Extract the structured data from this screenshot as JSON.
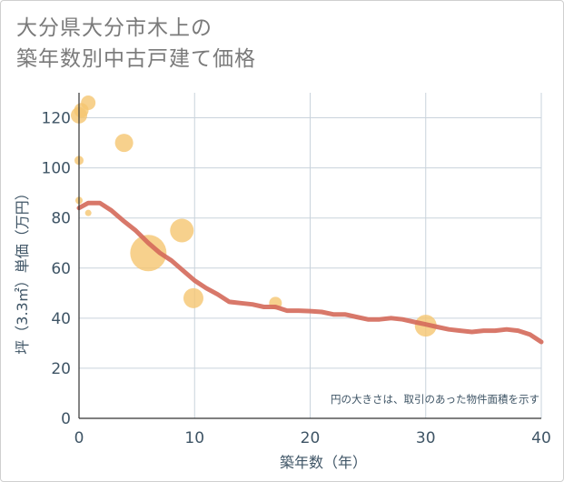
{
  "title": {
    "line1": "大分県大分市木上の",
    "line2": "築年数別中古戸建て価格"
  },
  "chart_data": {
    "type": "scatter+line",
    "xlabel": "築年数（年）",
    "ylabel": "坪（3.3㎡）単価（万円）",
    "xlim": [
      0,
      40
    ],
    "ylim": [
      0,
      130
    ],
    "xticks": [
      0,
      10,
      20,
      30,
      40
    ],
    "yticks": [
      0,
      20,
      40,
      60,
      80,
      100,
      120
    ],
    "note": "円の大きさは、取引のあった物件面積を示す",
    "colors": {
      "bubble": "#f5c571",
      "line": "#d4695a",
      "grid": "#c9d3dc",
      "text": "#3f5566"
    },
    "bubbles": [
      {
        "x": 0,
        "y": 121,
        "size": 9
      },
      {
        "x": 0.2,
        "y": 123,
        "size": 8
      },
      {
        "x": 0.8,
        "y": 126,
        "size": 8
      },
      {
        "x": 0,
        "y": 103,
        "size": 5
      },
      {
        "x": 0,
        "y": 87,
        "size": 4
      },
      {
        "x": 0.8,
        "y": 82,
        "size": 3.5
      },
      {
        "x": 3.9,
        "y": 110,
        "size": 10
      },
      {
        "x": 6,
        "y": 66,
        "size": 20
      },
      {
        "x": 8.9,
        "y": 75,
        "size": 13
      },
      {
        "x": 9.9,
        "y": 48,
        "size": 11
      },
      {
        "x": 17,
        "y": 46,
        "size": 7
      },
      {
        "x": 30,
        "y": 37,
        "size": 12
      }
    ],
    "trend": {
      "x": [
        0,
        0.8,
        1.8,
        2.8,
        3.8,
        4.9,
        6,
        7,
        8,
        9,
        10,
        11,
        12,
        13,
        14,
        15,
        16,
        17,
        18,
        19,
        20,
        21,
        22,
        23,
        24,
        25,
        26,
        27,
        28,
        29,
        30,
        31,
        32,
        33,
        34,
        35,
        36,
        37,
        38,
        39,
        40
      ],
      "y": [
        84,
        86,
        86,
        83,
        79,
        75,
        70,
        66,
        63,
        59,
        55,
        52,
        49.5,
        46.5,
        46,
        45.5,
        44.5,
        44.5,
        43,
        43,
        42.8,
        42.5,
        41.5,
        41.5,
        40.5,
        39.5,
        39.5,
        40,
        39.5,
        38.5,
        37.5,
        36.5,
        35.5,
        35,
        34.5,
        35,
        35,
        35.5,
        35,
        33.5,
        30.5
      ]
    }
  }
}
